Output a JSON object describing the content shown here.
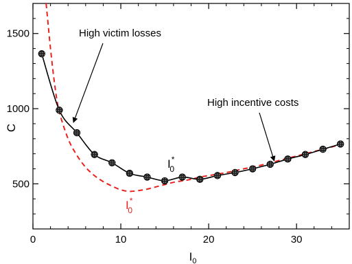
{
  "chart_data": {
    "type": "line",
    "title": "",
    "xlabel": "I",
    "xlabel_sub": "0",
    "ylabel": "C",
    "xlim": [
      0,
      36
    ],
    "ylim": [
      200,
      1700
    ],
    "x_ticks": [
      0,
      10,
      20,
      30
    ],
    "x_tick_labels": [
      "0",
      "10",
      "20",
      "30"
    ],
    "y_ticks": [
      500,
      1000,
      1500
    ],
    "y_tick_labels": [
      "500",
      "1000",
      "1500"
    ],
    "x_minor_step": 2,
    "y_minor_step": 100,
    "grid": false,
    "series": [
      {
        "color": "#000000",
        "style": "solid-with-markers",
        "label_main": "I",
        "label_sub": "0",
        "label_sup": "*",
        "x": [
          1,
          3,
          5,
          7,
          9,
          11,
          13,
          15,
          17,
          19,
          21,
          23,
          25,
          27,
          29,
          31,
          33,
          35
        ],
        "y": [
          1365,
          990,
          840,
          695,
          640,
          570,
          545,
          520,
          545,
          530,
          555,
          575,
          600,
          630,
          665,
          695,
          730,
          765
        ]
      },
      {
        "color": "#e8211d",
        "style": "dashed",
        "label_main": "I",
        "label_sub": "0",
        "label_sup": "*",
        "x": [
          1.5,
          2,
          2.5,
          3,
          4,
          5,
          6,
          7,
          8,
          9,
          10,
          11,
          12,
          13,
          14,
          15,
          16,
          17,
          18,
          19,
          20,
          22,
          24,
          26,
          28,
          30,
          32,
          34,
          35
        ],
        "y": [
          1700,
          1400,
          1150,
          980,
          800,
          690,
          610,
          555,
          515,
          485,
          460,
          450,
          455,
          465,
          480,
          495,
          510,
          520,
          530,
          545,
          555,
          575,
          600,
          625,
          655,
          685,
          715,
          745,
          765
        ]
      }
    ],
    "annotations": [
      {
        "text": "High victim losses",
        "arrow_to": [
          4.3,
          900
        ]
      },
      {
        "text": "High incentive costs",
        "arrow_to": [
          27.3,
          630
        ]
      }
    ]
  }
}
